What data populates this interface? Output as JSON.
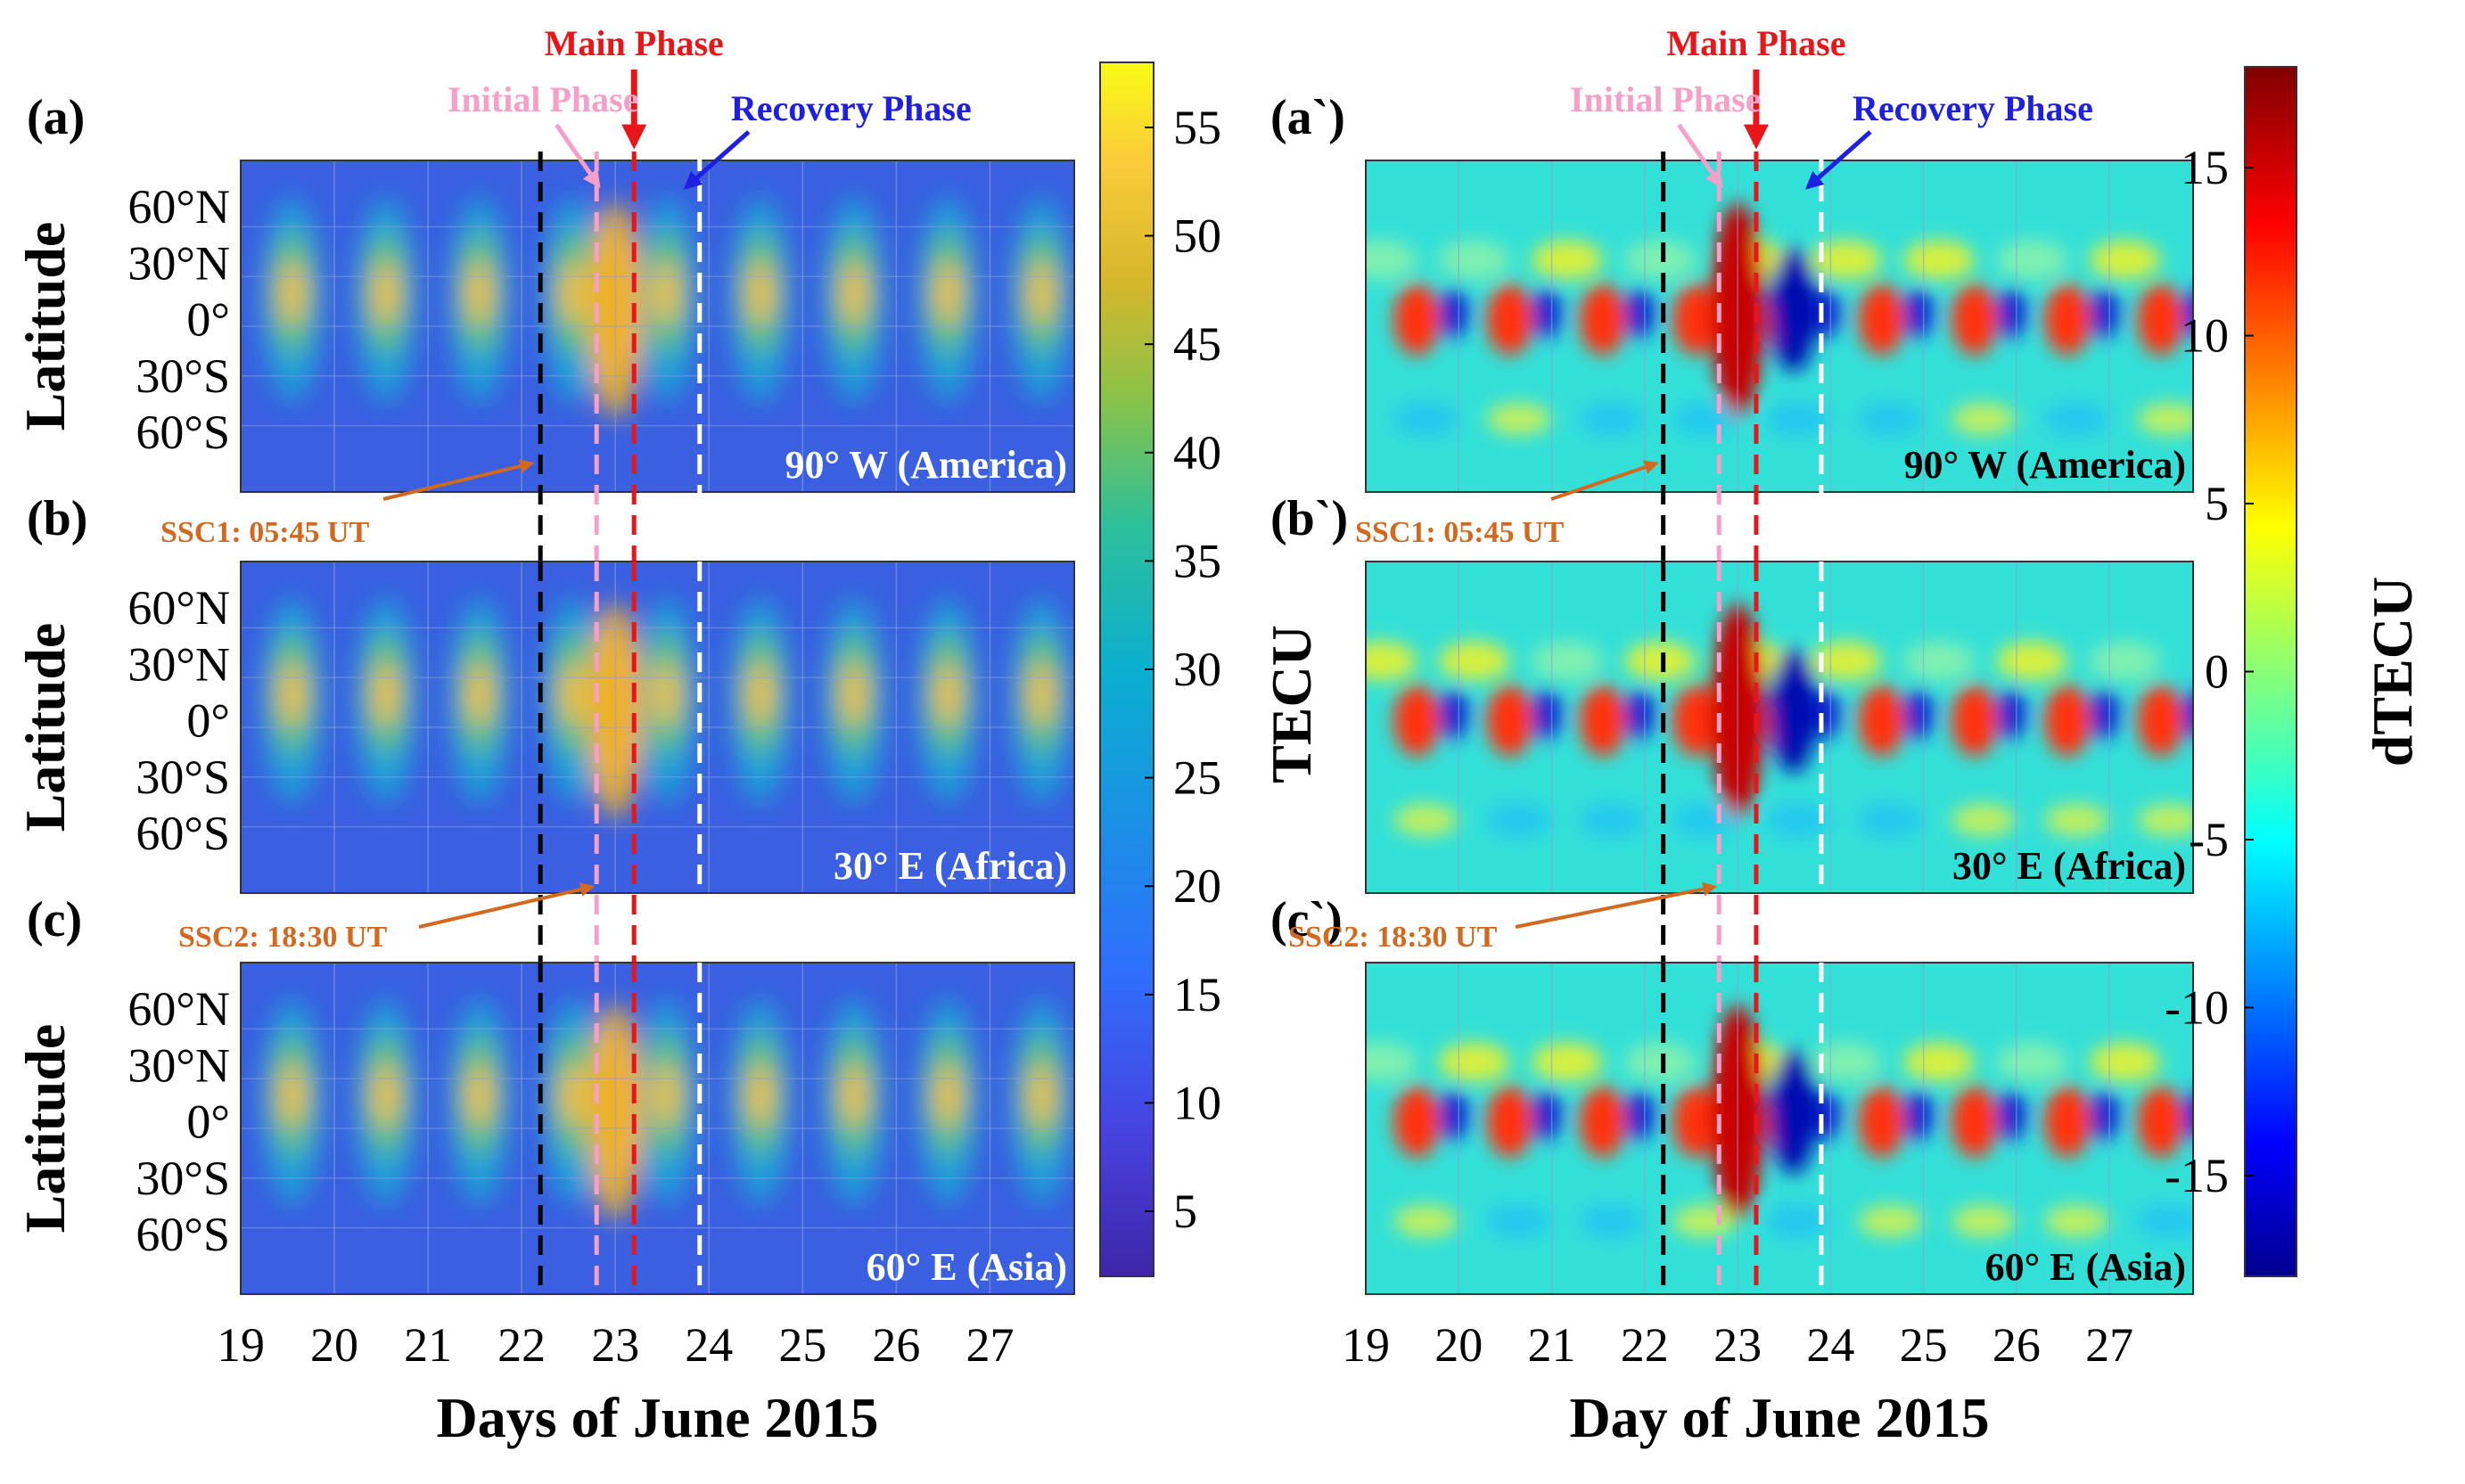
{
  "chart_data": [
    {
      "type": "heatmap",
      "id": "left",
      "title": "",
      "xlabel": "Days of June 2015",
      "ylabel": "Latitude",
      "x_ticks": [
        "19",
        "20",
        "21",
        "22",
        "23",
        "24",
        "25",
        "26",
        "27"
      ],
      "x_range": [
        19,
        27.9
      ],
      "y_ticks": [
        "60°N",
        "30°N",
        "0°",
        "30°S",
        "60°S"
      ],
      "colorbar": {
        "label": "TECU",
        "ticks": [
          "55",
          "50",
          "45",
          "40",
          "35",
          "30",
          "25",
          "20",
          "15",
          "10",
          "5"
        ],
        "range": [
          2,
          58
        ],
        "colormap": "parula"
      },
      "panels": [
        {
          "label": "(a)",
          "region": "90° W (America)"
        },
        {
          "label": "(b)",
          "region": "30° E (Africa)"
        },
        {
          "label": "(c)",
          "region": "60° E (Asia)"
        }
      ],
      "phases": {
        "initial": {
          "text": "Initial Phase",
          "day": 22.8
        },
        "main": {
          "text": "Main Phase",
          "day": 23.2
        },
        "recovery": {
          "text": "Recovery Phase",
          "day": 23.9
        },
        "ssc1_day": 22.2
      },
      "annotations": [
        {
          "text": "SSC1: 05:45 UT"
        },
        {
          "text": "SSC2: 18:30 UT"
        }
      ]
    },
    {
      "type": "heatmap",
      "id": "right",
      "title": "",
      "xlabel": "Day of June 2015",
      "ylabel": "",
      "x_ticks": [
        "19",
        "20",
        "21",
        "22",
        "23",
        "24",
        "25",
        "26",
        "27"
      ],
      "x_range": [
        19,
        27.9
      ],
      "colorbar": {
        "label": "dTECU",
        "ticks": [
          "15",
          "10",
          "5",
          "0",
          "-5",
          "-10",
          "-15"
        ],
        "range": [
          -18,
          18
        ],
        "colormap": "jet"
      },
      "panels": [
        {
          "label": "(a`)",
          "region": "90° W (America)"
        },
        {
          "label": "(b`)",
          "region": "30° E (Africa)"
        },
        {
          "label": "(c`)",
          "region": "60° E (Asia)"
        }
      ],
      "phases": {
        "initial": {
          "text": "Initial Phase",
          "day": 22.8
        },
        "main": {
          "text": "Main Phase",
          "day": 23.2
        },
        "recovery": {
          "text": "Recovery Phase",
          "day": 23.9
        },
        "ssc1_day": 22.2
      },
      "annotations": [
        {
          "text": "SSC1: 05:45 UT"
        },
        {
          "text": "SSC2: 18:30 UT"
        }
      ]
    }
  ],
  "middle_label": "TECU",
  "colors": {
    "initial": "#f5a0c8",
    "main": "#e8161a",
    "recovery": "#1f1fe0",
    "ssc": "#d2691e",
    "ssc1_line": "#000000",
    "recovery_line": "#ffffff"
  }
}
